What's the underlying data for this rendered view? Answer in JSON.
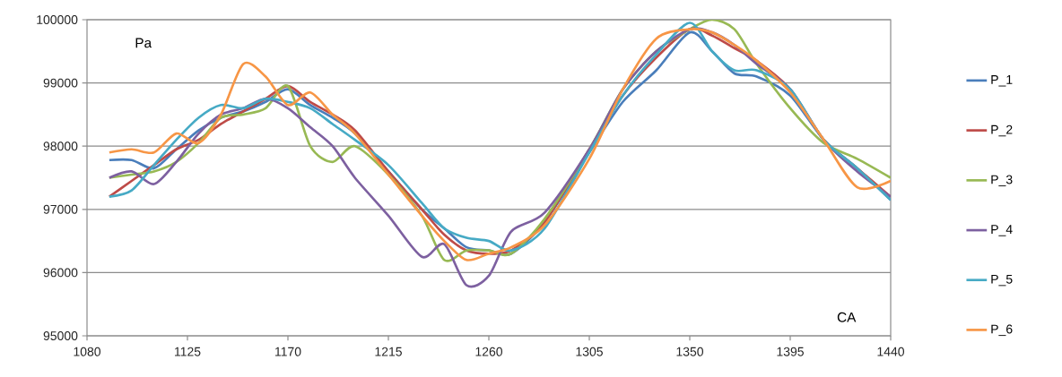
{
  "chart_data": {
    "type": "line",
    "xlabel": "CA",
    "ylabel": "Pa",
    "x": [
      1090,
      1100,
      1110,
      1120,
      1130,
      1140,
      1150,
      1160,
      1170,
      1180,
      1190,
      1200,
      1215,
      1230,
      1240,
      1250,
      1260,
      1270,
      1285,
      1305,
      1320,
      1335,
      1350,
      1360,
      1370,
      1380,
      1395,
      1410,
      1425,
      1440
    ],
    "series": [
      {
        "name": "P_1",
        "color": "#4a7ebb",
        "values": [
          97780,
          97780,
          97650,
          97950,
          98250,
          98450,
          98550,
          98700,
          98900,
          98650,
          98450,
          98200,
          97600,
          97000,
          96700,
          96400,
          96350,
          96300,
          96800,
          97900,
          98700,
          99200,
          99800,
          99500,
          99150,
          99100,
          98800,
          98100,
          97650,
          97150
        ]
      },
      {
        "name": "P_2",
        "color": "#be4b48",
        "values": [
          97200,
          97450,
          97700,
          97950,
          98100,
          98350,
          98550,
          98750,
          98950,
          98700,
          98500,
          98250,
          97600,
          97000,
          96600,
          96350,
          96300,
          96350,
          96800,
          97950,
          98800,
          99400,
          99850,
          99750,
          99550,
          99350,
          98900,
          98100,
          97650,
          97200
        ]
      },
      {
        "name": "P_3",
        "color": "#98b954",
        "values": [
          97500,
          97550,
          97600,
          97750,
          98050,
          98450,
          98500,
          98600,
          98950,
          98000,
          97750,
          98000,
          97550,
          96900,
          96200,
          96350,
          96350,
          96300,
          96850,
          97950,
          98900,
          99500,
          99850,
          100000,
          99850,
          99300,
          98600,
          98050,
          97800,
          97500
        ]
      },
      {
        "name": "P_4",
        "color": "#7d60a0",
        "values": [
          97500,
          97600,
          97400,
          97750,
          98200,
          98500,
          98600,
          98750,
          98600,
          98300,
          98000,
          97500,
          96900,
          96250,
          96450,
          95800,
          95950,
          96650,
          96950,
          97950,
          98900,
          99500,
          99850,
          99800,
          99600,
          99300,
          98900,
          98100,
          97600,
          97200
        ]
      },
      {
        "name": "P_5",
        "color": "#46aac5",
        "values": [
          97200,
          97300,
          97700,
          98100,
          98450,
          98650,
          98600,
          98750,
          98700,
          98600,
          98350,
          98100,
          97700,
          97100,
          96700,
          96550,
          96500,
          96350,
          96700,
          97900,
          98800,
          99450,
          99950,
          99500,
          99200,
          99200,
          98900,
          98100,
          97650,
          97150
        ]
      },
      {
        "name": "P_6",
        "color": "#f79646",
        "values": [
          97900,
          97950,
          97900,
          98200,
          98050,
          98500,
          99300,
          99100,
          98650,
          98850,
          98500,
          98200,
          97550,
          96900,
          96500,
          96200,
          96300,
          96400,
          96750,
          97800,
          98900,
          99700,
          99850,
          99800,
          99600,
          99350,
          98850,
          98100,
          97350,
          97450
        ]
      }
    ],
    "xlim": [
      1080,
      1440
    ],
    "ylim": [
      95000,
      100000
    ],
    "xticks": [
      1080,
      1125,
      1170,
      1215,
      1260,
      1305,
      1350,
      1395,
      1440
    ],
    "yticks": [
      95000,
      96000,
      97000,
      98000,
      99000,
      100000
    ],
    "grid": "y",
    "legend": "right",
    "marker": "none",
    "line_style": "solid"
  }
}
